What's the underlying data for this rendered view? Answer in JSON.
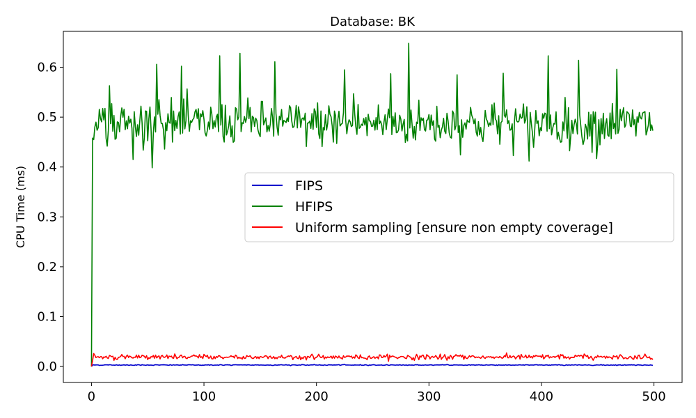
{
  "chart_data": {
    "type": "line",
    "title": "Database: BK",
    "xlabel": "",
    "ylabel": "CPU Time (ms)",
    "xlim": [
      -25,
      525
    ],
    "ylim": [
      -0.032,
      0.672
    ],
    "xticks": [
      0,
      100,
      200,
      300,
      400,
      500
    ],
    "yticks": [
      0.0,
      0.1,
      0.2,
      0.3,
      0.4,
      0.5,
      0.6
    ],
    "ytick_labels": [
      "0.0",
      "0.1",
      "0.2",
      "0.3",
      "0.4",
      "0.5",
      "0.6"
    ],
    "grid": false,
    "legend_position": "center-right",
    "series": [
      {
        "name": "FIPS",
        "color": "#0000cc"
      },
      {
        "name": "HFIPS",
        "color": "#008000"
      },
      {
        "name": "Uniform sampling [ensure non empty coverage]",
        "color": "#ff0000"
      }
    ]
  }
}
